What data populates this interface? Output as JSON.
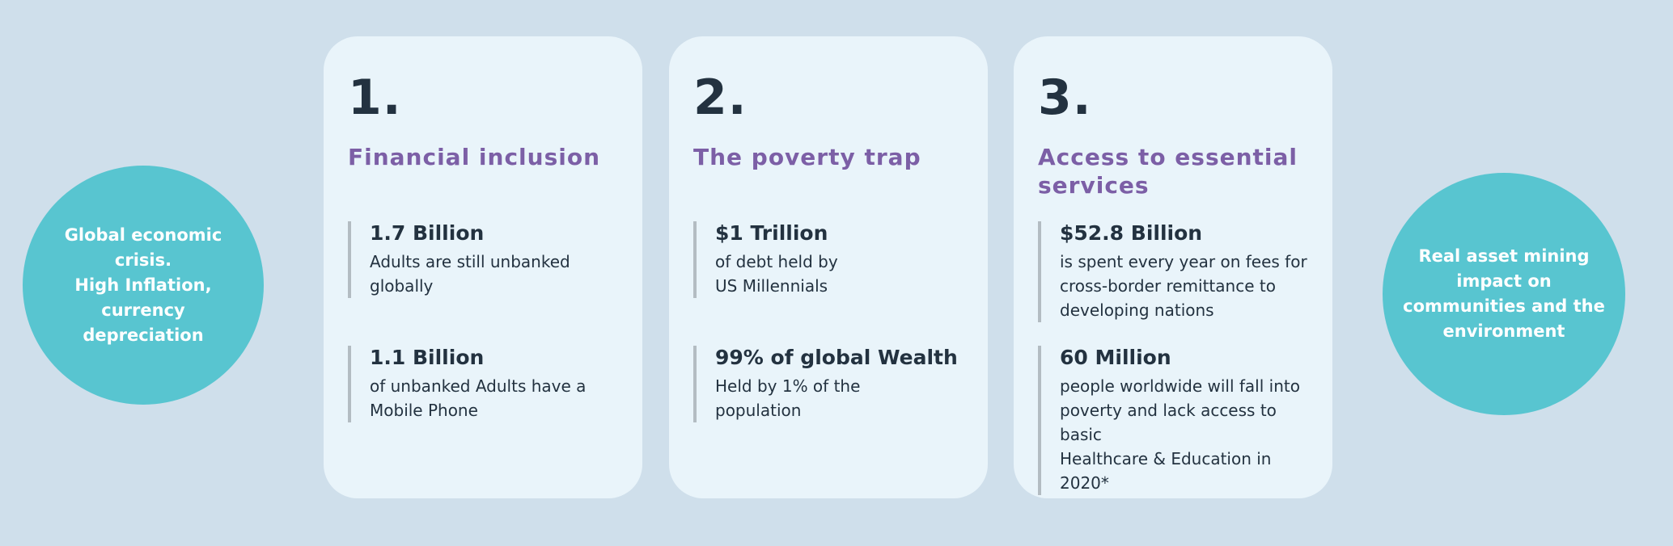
{
  "colors": {
    "bg": "#cfdfeb",
    "card_bg": "#e9f4fa",
    "teal": "#58c5d0",
    "purple": "#7c5fa6",
    "dark": "#233240",
    "bar": "#b3bcc2",
    "white": "#ffffff"
  },
  "left_circle": {
    "text": "Global economic\ncrisis.\nHigh Inflation,\ncurrency\ndepreciation"
  },
  "right_circle": {
    "text": "Real asset  mining\nimpact on\ncommunities and the\nenvironment"
  },
  "cards": [
    {
      "number": "1.",
      "title": "Financial inclusion",
      "stats": [
        {
          "value": "1.7 Billion",
          "desc": "Adults are still unbanked\nglobally"
        },
        {
          "value": "1.1 Billion",
          "desc": "of unbanked Adults have a\nMobile Phone"
        }
      ]
    },
    {
      "number": "2.",
      "title": "The poverty trap",
      "stats": [
        {
          "value": "$1 Trillion",
          "desc": "of debt held by\nUS Millennials"
        },
        {
          "value": "99% of global Wealth",
          "desc": "Held by 1% of the\npopulation"
        }
      ]
    },
    {
      "number": "3.",
      "title": "Access to essential\nservices",
      "stats": [
        {
          "value": "$52.8 Billion",
          "desc": "is spent every year on fees for\ncross-border remittance to\ndeveloping nations"
        },
        {
          "value": "60 Million",
          "desc": "people worldwide will fall into\npoverty and lack access to basic\nHealthcare & Education in 2020*"
        }
      ]
    }
  ]
}
